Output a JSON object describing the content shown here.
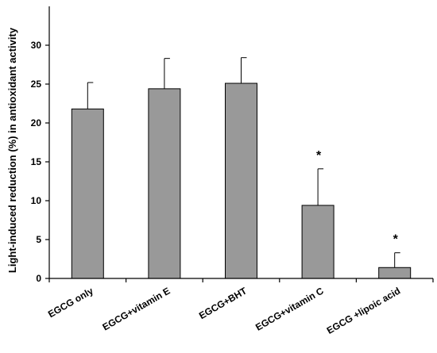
{
  "chart_data": {
    "type": "bar",
    "categories": [
      "EGCG only",
      "EGCG+vitamin E",
      "EGCG+BHT",
      "EGCG+vitamin C",
      "EGCG +lipoic acid"
    ],
    "values": [
      21.8,
      24.4,
      25.1,
      9.4,
      1.4
    ],
    "error_upper": [
      25.2,
      28.3,
      28.4,
      14.1,
      3.3
    ],
    "significance": [
      "",
      "",
      "",
      "*",
      "*"
    ],
    "ylabel": "Light-induced reduction (%) in antioxidant activity",
    "xlabel": "",
    "title": "",
    "ylim": [
      0,
      35
    ],
    "yticks": [
      0,
      5,
      10,
      15,
      20,
      25,
      30
    ],
    "bar_color": "#999999",
    "grid": false,
    "legend": "none"
  }
}
